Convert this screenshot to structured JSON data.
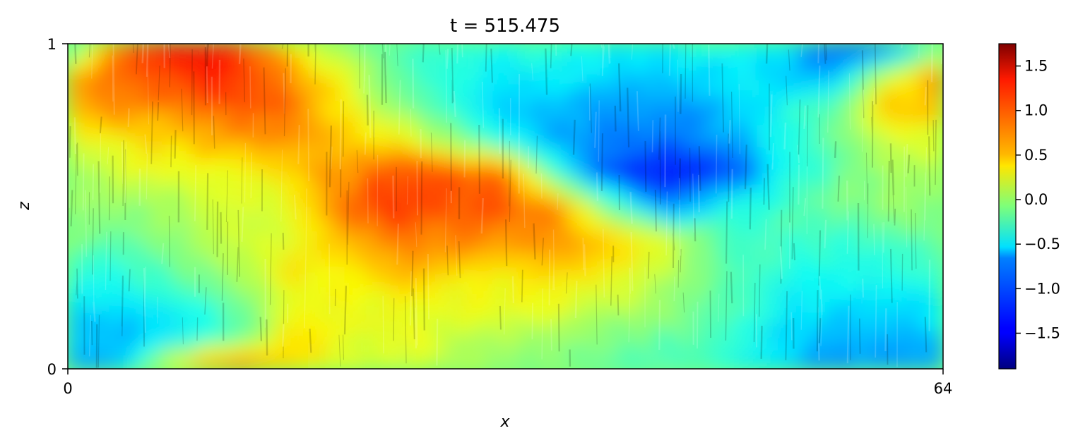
{
  "chart_data": {
    "type": "heatmap",
    "title": "t = 515.475",
    "xlabel": "x",
    "ylabel": "z",
    "xlim": [
      0,
      64
    ],
    "ylim": [
      0,
      1
    ],
    "xticks": [
      0,
      64
    ],
    "yticks": [
      0,
      1
    ],
    "x_tick_labels": [
      "0",
      "64"
    ],
    "y_tick_labels": [
      "0",
      "1"
    ],
    "colormap": "jet",
    "grid": false,
    "colorbar": {
      "placement": "right",
      "range": [
        -1.9,
        1.75
      ],
      "ticks": [
        -1.5,
        -1.0,
        -0.5,
        0.0,
        0.5,
        1.0,
        1.5
      ],
      "tick_labels": [
        "−1.5",
        "−1.0",
        "−0.5",
        "0.0",
        "0.5",
        "1.0",
        "1.5"
      ]
    },
    "field_description": "Diagonal banded structure in x-z: warm band (values ~0.5 to 1.5) running from top-left down to middle; cool band (values ~-0.5 to -1.7) running from upper right towards middle; cool patches near bottom-left and top-right corner; warm patch at top-right edge and bottom-left corner.",
    "field_samples": {
      "x": [
        0,
        4,
        8,
        12,
        16,
        20,
        24,
        28,
        32,
        36,
        40,
        44,
        48,
        52,
        56,
        60,
        64
      ],
      "z": [
        1.0,
        0.9,
        0.8,
        0.7,
        0.6,
        0.5,
        0.4,
        0.3,
        0.2,
        0.1,
        0.0
      ],
      "values": [
        [
          -0.6,
          0.9,
          1.3,
          1.2,
          0.4,
          0.0,
          -0.3,
          -0.4,
          -0.4,
          -0.4,
          -0.5,
          -0.5,
          -0.4,
          -0.6,
          -1.2,
          -1.4,
          -0.2
        ],
        [
          0.7,
          1.0,
          1.1,
          1.2,
          0.9,
          0.3,
          -0.3,
          -0.4,
          -0.6,
          -0.6,
          -0.7,
          -0.7,
          -0.6,
          -0.6,
          -0.9,
          0.3,
          0.8
        ],
        [
          0.6,
          0.8,
          0.9,
          1.0,
          0.9,
          0.5,
          0.0,
          -0.4,
          -0.7,
          -0.8,
          -0.9,
          -0.9,
          -0.8,
          -0.5,
          -0.2,
          0.6,
          0.7
        ],
        [
          0.3,
          0.4,
          0.6,
          0.7,
          0.8,
          0.6,
          0.4,
          0.0,
          -0.5,
          -0.9,
          -1.0,
          -1.1,
          -0.9,
          -0.5,
          -0.1,
          0.2,
          0.3
        ],
        [
          0.1,
          0.2,
          0.3,
          0.3,
          0.5,
          0.8,
          1.1,
          1.1,
          0.9,
          -0.5,
          -1.3,
          -1.5,
          -1.3,
          -0.6,
          -0.2,
          0.0,
          0.1
        ],
        [
          0.0,
          0.0,
          0.1,
          0.2,
          0.3,
          0.9,
          1.1,
          1.0,
          1.0,
          0.8,
          -0.3,
          -1.0,
          -0.5,
          -0.3,
          -0.1,
          0.0,
          0.0
        ],
        [
          -0.1,
          -0.2,
          0.0,
          0.2,
          0.2,
          0.7,
          0.9,
          0.8,
          0.8,
          0.8,
          0.6,
          0.2,
          -0.3,
          -0.3,
          -0.4,
          -0.3,
          -0.2
        ],
        [
          -0.3,
          -0.4,
          -0.2,
          0.0,
          0.4,
          0.4,
          0.6,
          0.5,
          0.5,
          0.5,
          0.4,
          0.1,
          -0.2,
          -0.4,
          -0.5,
          -0.4,
          -0.4
        ],
        [
          -0.6,
          -0.6,
          -0.5,
          -0.2,
          0.3,
          0.3,
          0.4,
          0.3,
          0.3,
          0.3,
          0.2,
          0.0,
          -0.2,
          -0.5,
          -0.6,
          -0.6,
          -0.6
        ],
        [
          -0.8,
          -0.8,
          -0.6,
          -0.3,
          0.4,
          0.3,
          0.3,
          0.2,
          0.1,
          0.0,
          -0.1,
          -0.2,
          -0.3,
          -0.6,
          -0.8,
          -0.8,
          -0.8
        ],
        [
          -0.9,
          -0.7,
          0.5,
          1.0,
          0.6,
          0.3,
          0.2,
          0.1,
          0.0,
          -0.1,
          -0.2,
          -0.3,
          -0.4,
          -0.7,
          -0.9,
          -0.9,
          -0.9
        ]
      ]
    }
  }
}
